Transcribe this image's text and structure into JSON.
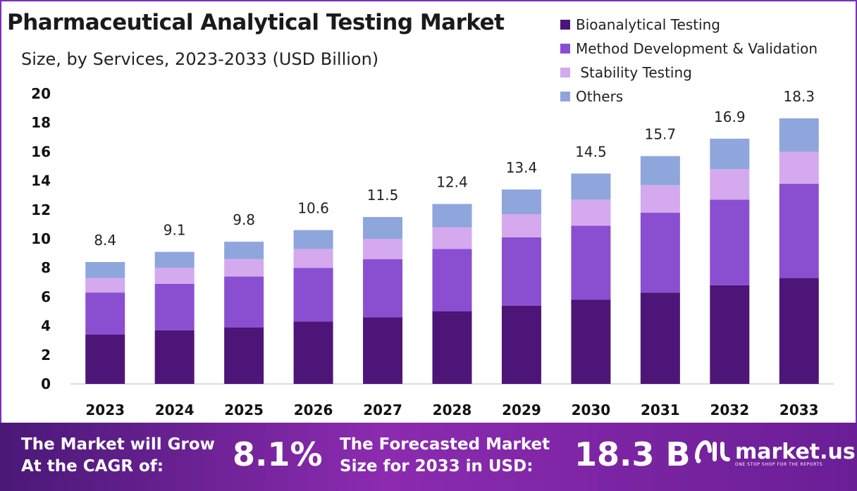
{
  "title": "Pharmaceutical Analytical Testing Market",
  "subtitle": "Size, by Services, 2023-2033 (USD Billion)",
  "colors": {
    "bioanalytical": "#4e1578",
    "method": "#8a4fd0",
    "stability": "#d4a9ee",
    "others": "#8ea6dc",
    "frame": "#7a2fbf"
  },
  "chart_data": {
    "type": "bar",
    "stacked": true,
    "categories": [
      "2023",
      "2024",
      "2025",
      "2026",
      "2027",
      "2028",
      "2029",
      "2030",
      "2031",
      "2032",
      "2033"
    ],
    "series": [
      {
        "name": "Bioanalytical Testing",
        "values": [
          3.4,
          3.7,
          3.9,
          4.3,
          4.6,
          5.0,
          5.4,
          5.8,
          6.3,
          6.8,
          7.3
        ]
      },
      {
        "name": "Method Development & Validation",
        "values": [
          2.9,
          3.2,
          3.5,
          3.7,
          4.0,
          4.3,
          4.7,
          5.1,
          5.5,
          5.9,
          6.5
        ]
      },
      {
        "name": " Stability Testing",
        "values": [
          1.0,
          1.1,
          1.2,
          1.3,
          1.4,
          1.5,
          1.6,
          1.8,
          1.9,
          2.1,
          2.2
        ]
      },
      {
        "name": "Others",
        "values": [
          1.1,
          1.1,
          1.2,
          1.3,
          1.5,
          1.6,
          1.7,
          1.8,
          2.0,
          2.1,
          2.3
        ]
      }
    ],
    "totals": [
      "8.4",
      "9.1",
      "9.8",
      "10.6",
      "11.5",
      "12.4",
      "13.4",
      "14.5",
      "15.7",
      "16.9",
      "18.3"
    ],
    "ylim": [
      0,
      20
    ],
    "yticks": [
      "0",
      "2",
      "4",
      "6",
      "8",
      "10",
      "12",
      "14",
      "16",
      "18",
      "20"
    ],
    "grid": false,
    "legend_position": "top-right"
  },
  "banner": {
    "cagr_label_line1": "The Market will Grow",
    "cagr_label_line2": "At the CAGR of:",
    "cagr_value": "8.1%",
    "forecast_label_line1": "The Forecasted Market",
    "forecast_label_line2": "Size for 2033 in USD:",
    "forecast_value": "18.3 B",
    "logo_text": "market.us",
    "logo_tagline": "ONE STOP SHOP FOR THE REPORTS"
  }
}
